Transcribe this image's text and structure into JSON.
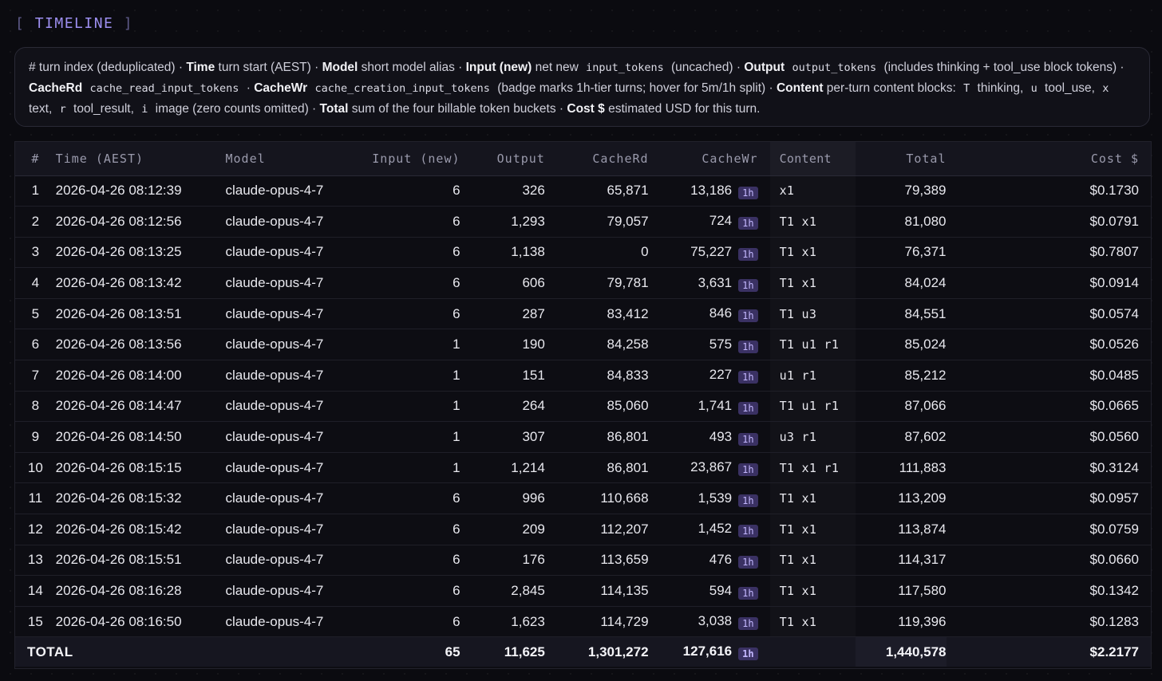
{
  "section": {
    "bracket_left": "[",
    "title": "TIMELINE",
    "bracket_right": "]"
  },
  "legend": {
    "p1": "# turn index (deduplicated) · ",
    "time_b": "Time",
    "time_d": " turn start (AEST) · ",
    "model_b": "Model",
    "model_d": " short model alias · ",
    "input_b": "Input (new)",
    "input_d1": " net new ",
    "input_code": "input_tokens",
    "input_d2": " (uncached) · ",
    "output_b": "Output",
    "output_code": "output_tokens",
    "output_d": " (includes thinking + tool_use block tokens) · ",
    "cacherd_b": "CacheRd",
    "cacherd_code": "cache_read_input_tokens",
    "cacherd_d": " · ",
    "cachewr_b": "CacheWr",
    "cachewr_code": "cache_creation_input_tokens",
    "cachewr_d": " (badge marks 1h-tier turns; hover for 5m/1h split) · ",
    "content_b": "Content",
    "content_d": " per-turn content blocks: ",
    "t_code": "T",
    "t_d": " thinking, ",
    "u_code": "u",
    "u_d": " tool_use, ",
    "x_code": "x",
    "x_d": " text, ",
    "r_code": "r",
    "r_d": " tool_result, ",
    "i_code": "i",
    "i_d": " image (zero counts omitted) · ",
    "total_b": "Total",
    "total_d": " sum of the four billable token buckets · ",
    "cost_b": "Cost $",
    "cost_d": " estimated USD for this turn."
  },
  "table": {
    "columns": [
      "#",
      "Time (AEST)",
      "Model",
      "Input (new)",
      "Output",
      "CacheRd",
      "CacheWr",
      "Content",
      "Total",
      "Cost $"
    ],
    "badge": "1h",
    "rows": [
      {
        "idx": "1",
        "time": "2026-04-26 08:12:39",
        "model": "claude-opus-4-7",
        "input": "6",
        "output": "326",
        "cache_rd": "65,871",
        "cache_wr": "13,186",
        "content": "x1",
        "total": "79,389",
        "cost": "$0.1730"
      },
      {
        "idx": "2",
        "time": "2026-04-26 08:12:56",
        "model": "claude-opus-4-7",
        "input": "6",
        "output": "1,293",
        "cache_rd": "79,057",
        "cache_wr": "724",
        "content": "T1 x1",
        "total": "81,080",
        "cost": "$0.0791"
      },
      {
        "idx": "3",
        "time": "2026-04-26 08:13:25",
        "model": "claude-opus-4-7",
        "input": "6",
        "output": "1,138",
        "cache_rd": "0",
        "cache_wr": "75,227",
        "content": "T1 x1",
        "total": "76,371",
        "cost": "$0.7807"
      },
      {
        "idx": "4",
        "time": "2026-04-26 08:13:42",
        "model": "claude-opus-4-7",
        "input": "6",
        "output": "606",
        "cache_rd": "79,781",
        "cache_wr": "3,631",
        "content": "T1 x1",
        "total": "84,024",
        "cost": "$0.0914"
      },
      {
        "idx": "5",
        "time": "2026-04-26 08:13:51",
        "model": "claude-opus-4-7",
        "input": "6",
        "output": "287",
        "cache_rd": "83,412",
        "cache_wr": "846",
        "content": "T1 u3",
        "total": "84,551",
        "cost": "$0.0574"
      },
      {
        "idx": "6",
        "time": "2026-04-26 08:13:56",
        "model": "claude-opus-4-7",
        "input": "1",
        "output": "190",
        "cache_rd": "84,258",
        "cache_wr": "575",
        "content": "T1 u1 r1",
        "total": "85,024",
        "cost": "$0.0526"
      },
      {
        "idx": "7",
        "time": "2026-04-26 08:14:00",
        "model": "claude-opus-4-7",
        "input": "1",
        "output": "151",
        "cache_rd": "84,833",
        "cache_wr": "227",
        "content": "u1 r1",
        "total": "85,212",
        "cost": "$0.0485"
      },
      {
        "idx": "8",
        "time": "2026-04-26 08:14:47",
        "model": "claude-opus-4-7",
        "input": "1",
        "output": "264",
        "cache_rd": "85,060",
        "cache_wr": "1,741",
        "content": "T1 u1 r1",
        "total": "87,066",
        "cost": "$0.0665"
      },
      {
        "idx": "9",
        "time": "2026-04-26 08:14:50",
        "model": "claude-opus-4-7",
        "input": "1",
        "output": "307",
        "cache_rd": "86,801",
        "cache_wr": "493",
        "content": "u3 r1",
        "total": "87,602",
        "cost": "$0.0560"
      },
      {
        "idx": "10",
        "time": "2026-04-26 08:15:15",
        "model": "claude-opus-4-7",
        "input": "1",
        "output": "1,214",
        "cache_rd": "86,801",
        "cache_wr": "23,867",
        "content": "T1 x1 r1",
        "total": "111,883",
        "cost": "$0.3124"
      },
      {
        "idx": "11",
        "time": "2026-04-26 08:15:32",
        "model": "claude-opus-4-7",
        "input": "6",
        "output": "996",
        "cache_rd": "110,668",
        "cache_wr": "1,539",
        "content": "T1 x1",
        "total": "113,209",
        "cost": "$0.0957"
      },
      {
        "idx": "12",
        "time": "2026-04-26 08:15:42",
        "model": "claude-opus-4-7",
        "input": "6",
        "output": "209",
        "cache_rd": "112,207",
        "cache_wr": "1,452",
        "content": "T1 x1",
        "total": "113,874",
        "cost": "$0.0759"
      },
      {
        "idx": "13",
        "time": "2026-04-26 08:15:51",
        "model": "claude-opus-4-7",
        "input": "6",
        "output": "176",
        "cache_rd": "113,659",
        "cache_wr": "476",
        "content": "T1 x1",
        "total": "114,317",
        "cost": "$0.0660"
      },
      {
        "idx": "14",
        "time": "2026-04-26 08:16:28",
        "model": "claude-opus-4-7",
        "input": "6",
        "output": "2,845",
        "cache_rd": "114,135",
        "cache_wr": "594",
        "content": "T1 x1",
        "total": "117,580",
        "cost": "$0.1342"
      },
      {
        "idx": "15",
        "time": "2026-04-26 08:16:50",
        "model": "claude-opus-4-7",
        "input": "6",
        "output": "1,623",
        "cache_rd": "114,729",
        "cache_wr": "3,038",
        "content": "T1 x1",
        "total": "119,396",
        "cost": "$0.1283"
      }
    ],
    "totals": {
      "label": "TOTAL",
      "input": "65",
      "output": "11,625",
      "cache_rd": "1,301,272",
      "cache_wr": "127,616",
      "total": "1,440,578",
      "cost": "$2.2177"
    }
  }
}
